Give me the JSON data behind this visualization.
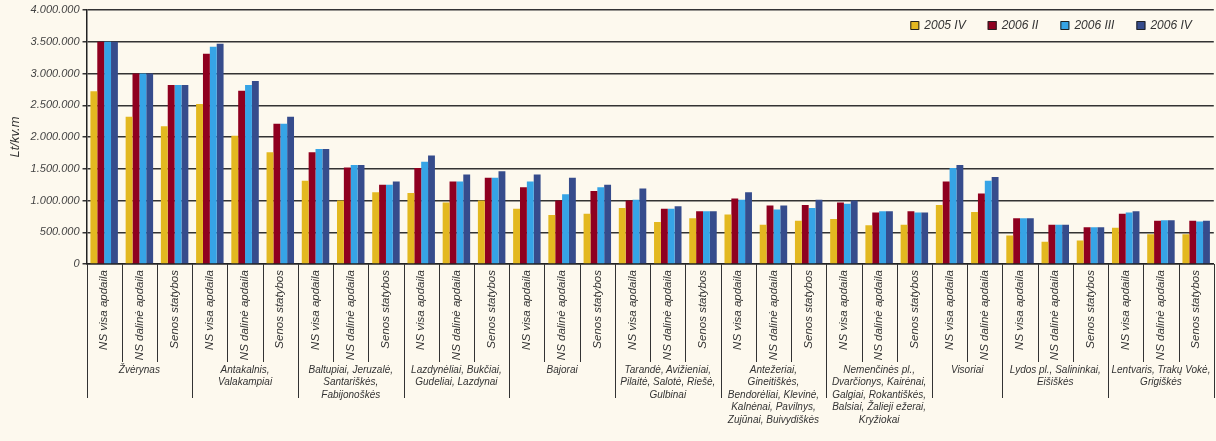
{
  "chart_data": {
    "type": "bar",
    "ylabel": "Lt/kv.m",
    "categories": [
      "NS visa apdaila",
      "NS dalinė apdaila",
      "Senos statybos",
      "NS visa apdaila",
      "NS dalinė apdaila",
      "Senos statybos",
      "NS visa apdaila",
      "NS dalinė apdaila",
      "Senos statybos",
      "NS visa apdaila",
      "NS dalinė apdaila",
      "Senos statybos",
      "NS visa apdaila",
      "NS dalinė apdaila",
      "Senos statybos",
      "NS visa apdaila",
      "NS dalinė apdaila",
      "Senos statybos",
      "NS visa apdaila",
      "NS dalinė apdaila",
      "Senos statybos",
      "NS visa apdaila",
      "NS dalinė apdaila",
      "Senos statybos",
      "NS visa apdaila",
      "NS dalinė apdaila",
      "NS visa apdaila",
      "NS dalinė apdaila",
      "Senos statybos",
      "NS visa apdaila",
      "NS dalinė apdaila",
      "Senos statybos"
    ],
    "series": [
      {
        "name": "2005 IV",
        "color": "#e3b820",
        "values": [
          2720000,
          2320000,
          2170000,
          2520000,
          2020000,
          1760000,
          1310000,
          1000000,
          1130000,
          1120000,
          970000,
          1000000,
          870000,
          770000,
          790000,
          880000,
          660000,
          720000,
          780000,
          620000,
          680000,
          710000,
          610000,
          620000,
          930000,
          820000,
          450000,
          350000,
          370000,
          570000,
          470000,
          470000
        ]
      },
      {
        "name": "2006 II",
        "color": "#8f0020",
        "values": [
          3500000,
          3000000,
          2820000,
          3310000,
          2730000,
          2210000,
          1760000,
          1520000,
          1250000,
          1510000,
          1300000,
          1360000,
          1210000,
          1000000,
          1150000,
          1000000,
          870000,
          830000,
          1030000,
          920000,
          930000,
          970000,
          810000,
          830000,
          1300000,
          1110000,
          720000,
          620000,
          580000,
          790000,
          680000,
          680000
        ]
      },
      {
        "name": "2006 III",
        "color": "#36a4e6",
        "values": [
          3500000,
          3000000,
          2820000,
          3420000,
          2820000,
          2210000,
          1810000,
          1560000,
          1250000,
          1610000,
          1300000,
          1360000,
          1300000,
          1100000,
          1210000,
          1010000,
          870000,
          830000,
          1010000,
          860000,
          880000,
          950000,
          830000,
          810000,
          1510000,
          1310000,
          720000,
          620000,
          580000,
          810000,
          690000,
          670000
        ]
      },
      {
        "name": "2006 IV",
        "color": "#364c8c",
        "values": [
          3500000,
          3000000,
          2820000,
          3470000,
          2880000,
          2320000,
          1810000,
          1560000,
          1300000,
          1710000,
          1410000,
          1460000,
          1410000,
          1360000,
          1250000,
          1190000,
          910000,
          830000,
          1130000,
          920000,
          1010000,
          1000000,
          830000,
          810000,
          1560000,
          1370000,
          720000,
          620000,
          580000,
          830000,
          690000,
          680000
        ]
      }
    ],
    "ylim": [
      0,
      4000000
    ],
    "yticks": [
      {
        "value": 0,
        "label": "0"
      },
      {
        "value": 500000,
        "label": "500.000"
      },
      {
        "value": 1000000,
        "label": "1.000.000"
      },
      {
        "value": 1500000,
        "label": "1.500.000"
      },
      {
        "value": 2000000,
        "label": "2.000.000"
      },
      {
        "value": 2500000,
        "label": "2.500.000"
      },
      {
        "value": 3000000,
        "label": "3.000.000"
      },
      {
        "value": 3500000,
        "label": "3.500.000"
      },
      {
        "value": 4000000,
        "label": "4.000.000"
      }
    ],
    "grid": "y",
    "legend": "top right",
    "annotations": [
      "Žvėrynas",
      "Antakalnis, Valakampiai",
      "Baltupiai, Jeruzalė, Santariškės, Fabijonoškės",
      "Lazdynėliai, Bukčiai, Gudeliai, Lazdynai",
      "Bajorai",
      "Tarandė, Avižieniai, Pilaitė, Salotė, Riešė, Gulbinai",
      "Antežeriai, Gineitiškės, Bendorėliai, Klevinė, Kalnėnai, Pavilnys, Zujūnai, Buivydiškės",
      "Nemenčinės pl., Dvarčionys, Kairėnai, Galgiai, Rokantiškės, Balsiai, Žalieji ežerai, Kryžiokai",
      "Visoriai",
      "Lydos pl., Salininkai, Eišiškės",
      "Lentvaris, Trakų Vokė, Grigiškės"
    ]
  }
}
